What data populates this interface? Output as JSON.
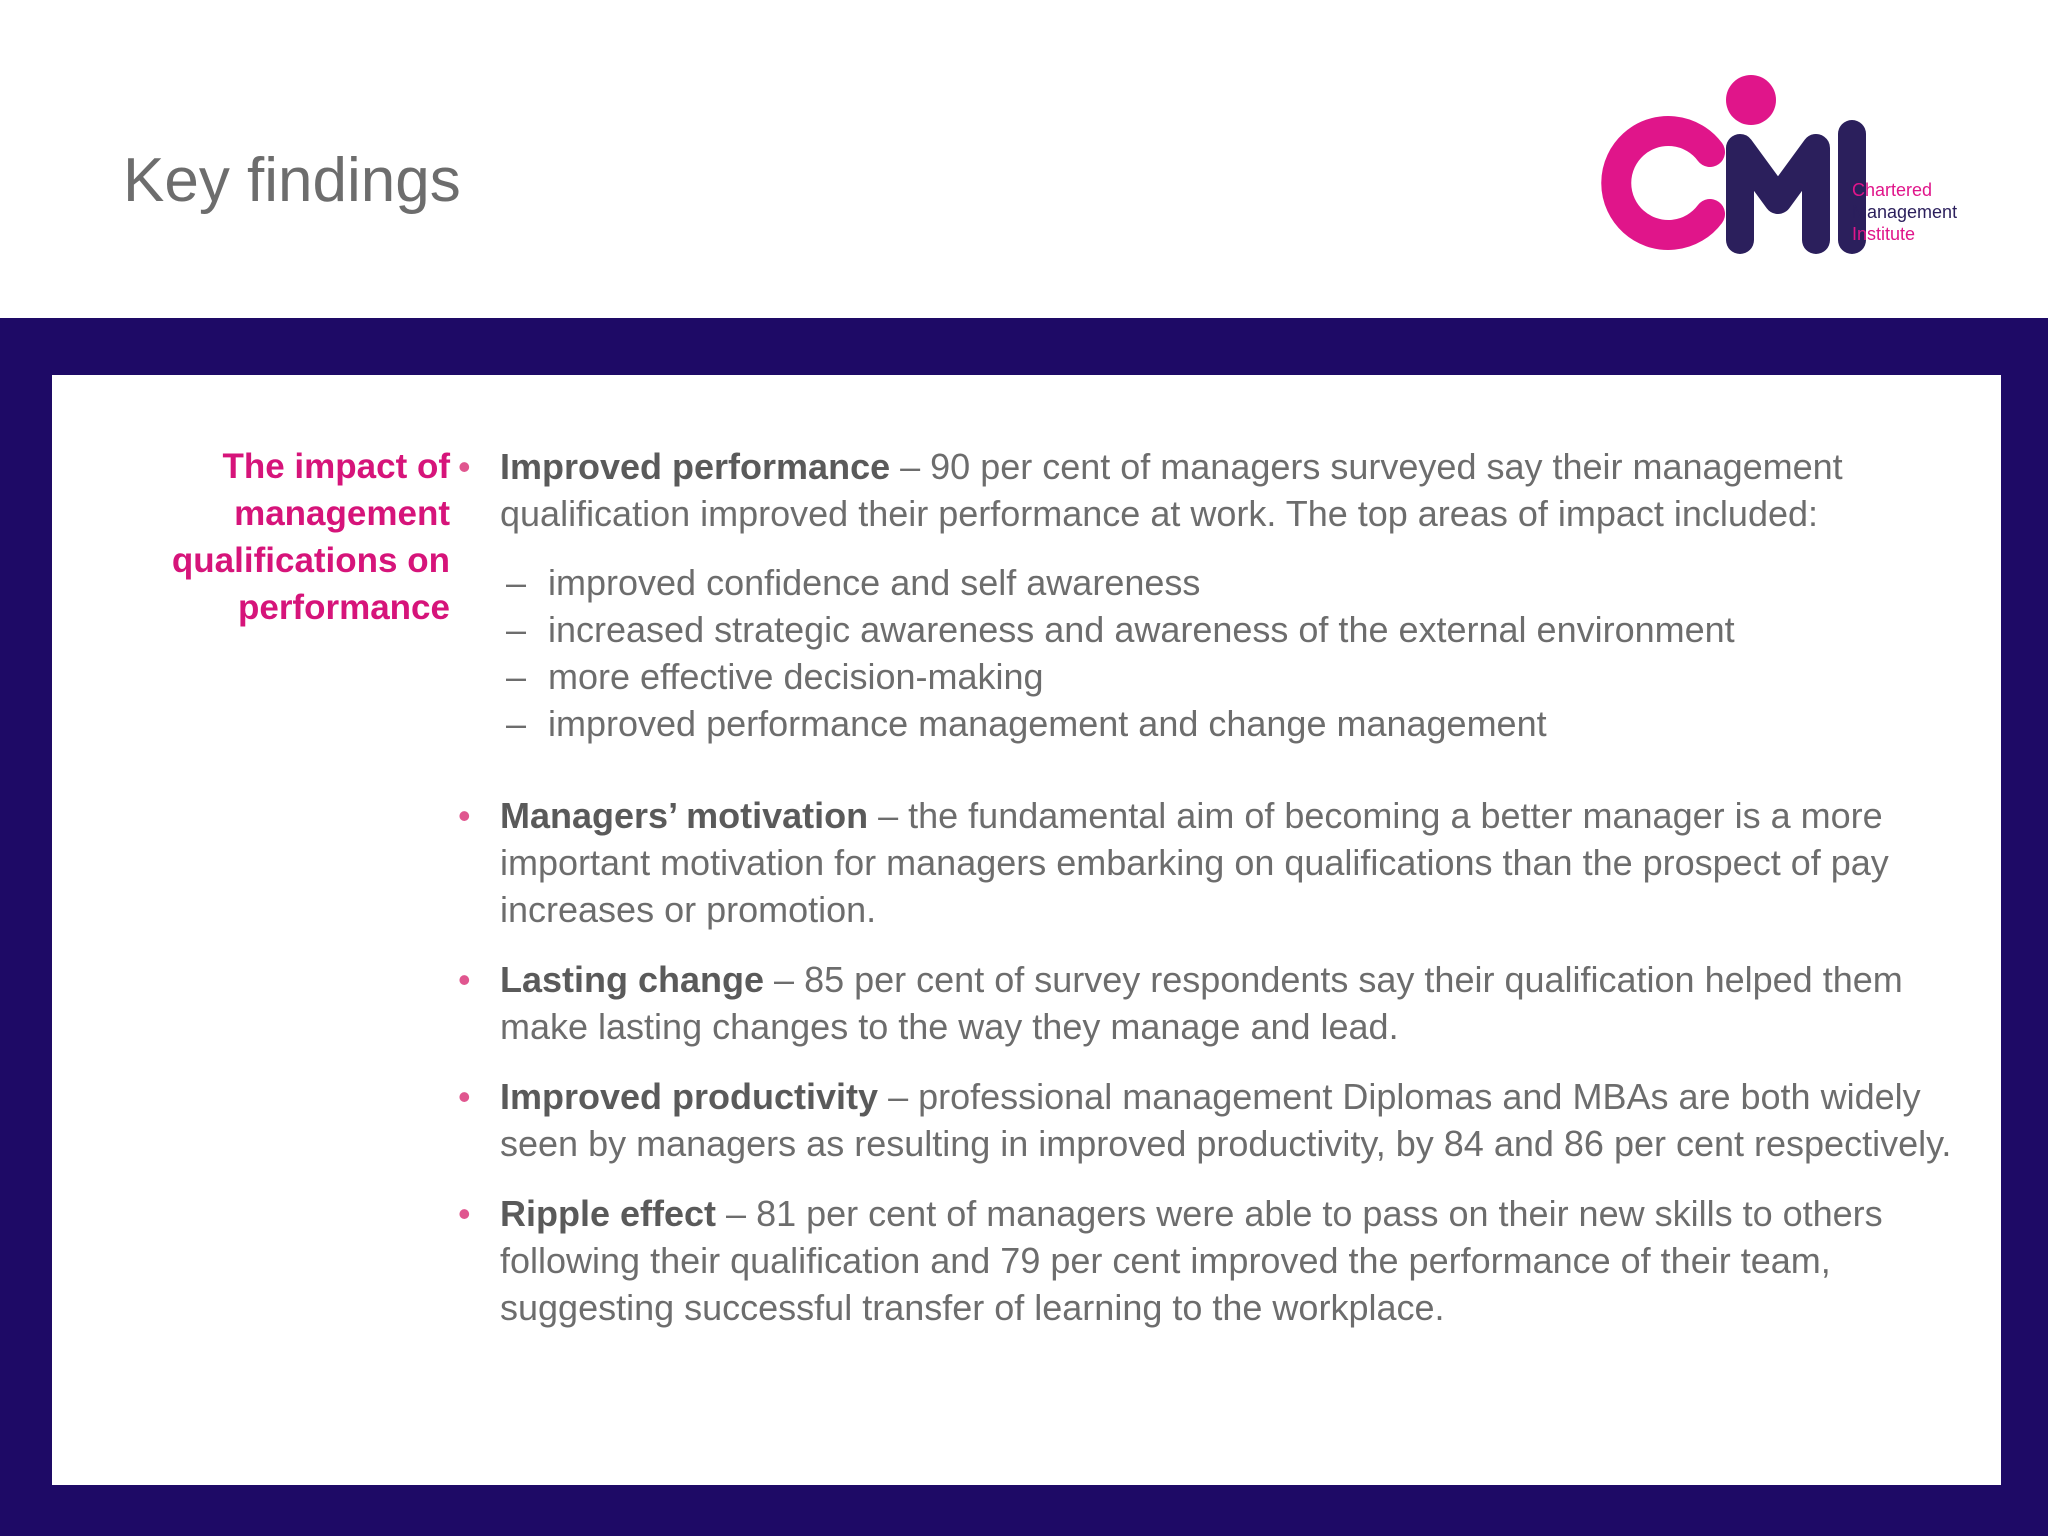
{
  "slide": {
    "title": "Key findings"
  },
  "logo": {
    "mark": "CMI",
    "line1": "Chartered",
    "line2": "Management",
    "line3": "Institute"
  },
  "colors": {
    "band": "#1e0a66",
    "accent_pink": "#d6147a",
    "logo_navy": "#2b1f5c",
    "body_text": "#6d6d6d"
  },
  "content": {
    "side_heading": "The impact of management qualifications on performance",
    "bullets": [
      {
        "term": "Improved performance",
        "text": " – 90 per cent of managers surveyed say their management qualification improved their performance at work.  The top areas of impact included:",
        "subs": [
          "improved confidence and self awareness",
          "increased strategic awareness and awareness of the external environment",
          "more effective decision-making",
          "improved performance management and change management"
        ]
      },
      {
        "term": "Managers’ motivation",
        "text": " – the fundamental aim of becoming a better manager is a more important motivation for managers embarking on qualifications than the prospect of pay increases or promotion."
      },
      {
        "term": "Lasting change",
        "text": " – 85 per cent of survey respondents say their qualification helped them make lasting changes to the way they manage and lead."
      },
      {
        "term": "Improved productivity",
        "text": " – professional management Diplomas and MBAs are both widely seen by managers as resulting in improved productivity, by 84 and 86 per cent respectively."
      },
      {
        "term": "Ripple effect",
        "text": " – 81 per cent of managers were able to pass on their new skills to others following their qualification and 79 per cent improved the performance of their team, suggesting successful transfer of learning to the workplace."
      }
    ]
  }
}
